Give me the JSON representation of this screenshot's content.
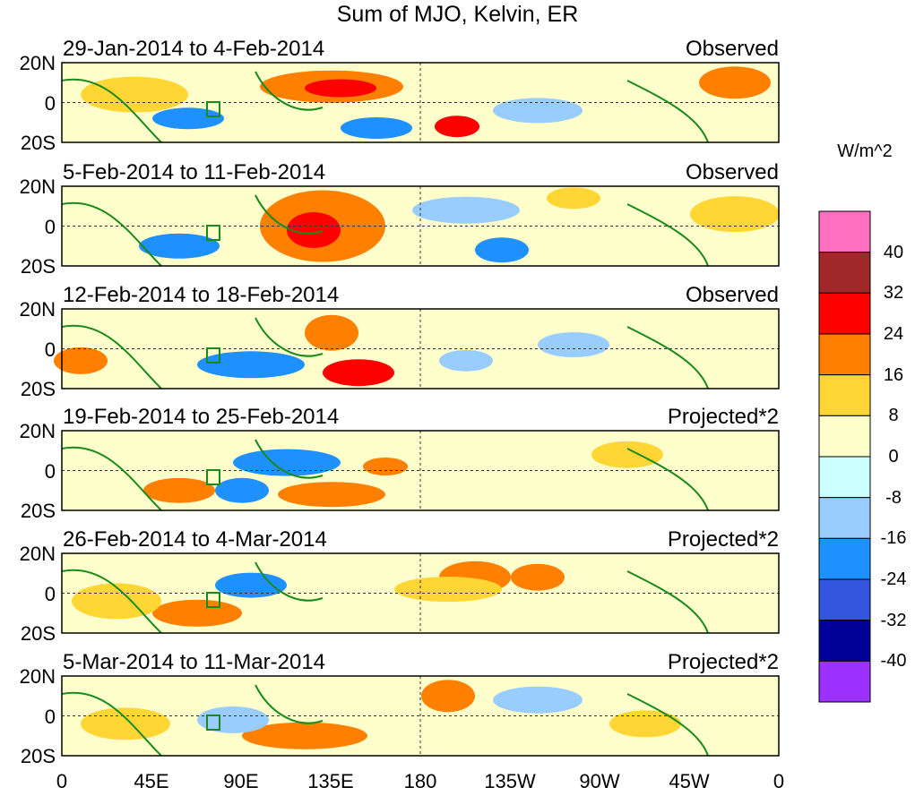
{
  "title": "Sum of MJO, Kelvin, ER",
  "units": "W/m^2",
  "panels": [
    {
      "dates": "29-Jan-2014 to 4-Feb-2014",
      "type": "Observed"
    },
    {
      "dates": "5-Feb-2014 to 11-Feb-2014",
      "type": "Observed"
    },
    {
      "dates": "12-Feb-2014 to 18-Feb-2014",
      "type": "Observed"
    },
    {
      "dates": "19-Feb-2014 to 25-Feb-2014",
      "type": "Projected*2"
    },
    {
      "dates": "26-Feb-2014 to 4-Mar-2014",
      "type": "Projected*2"
    },
    {
      "dates": "5-Mar-2014 to 11-Mar-2014",
      "type": "Projected*2"
    }
  ],
  "lat_labels": [
    "20N",
    "0",
    "20S"
  ],
  "lon_labels": [
    "0",
    "45E",
    "90E",
    "135E",
    "180",
    "135W",
    "90W",
    "45W",
    "0"
  ],
  "colorbar": {
    "labels": [
      "40",
      "32",
      "24",
      "16",
      "8",
      "0",
      "-8",
      "-16",
      "-24",
      "-32",
      "-40"
    ],
    "colors": [
      "#ff6fc0",
      "#a02828",
      "#ff0000",
      "#ff8000",
      "#ffd633",
      "#ffffcc",
      "#ccffff",
      "#99ccff",
      "#1e90ff",
      "#3355dd",
      "#000099",
      "#9b30ff"
    ]
  }
}
